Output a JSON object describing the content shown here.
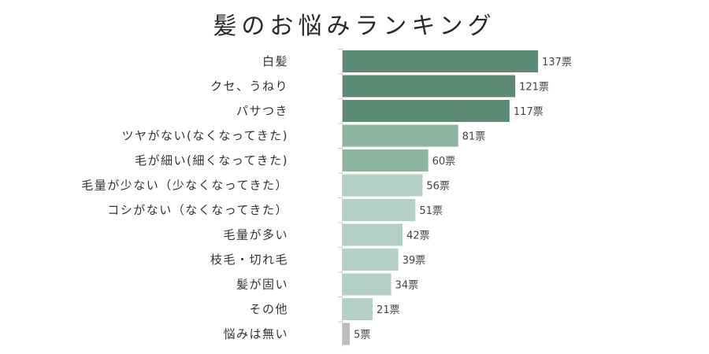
{
  "chart_data": {
    "type": "bar",
    "orientation": "horizontal",
    "title": "髪のお悩みランキング",
    "unit_suffix": "票",
    "categories": [
      "白髪",
      "クセ、うねり",
      "パサつき",
      "ツヤがない(なくなってきた)",
      "毛が細い(細くなってきた)",
      "毛量が少ない（少なくなってきた）",
      "コシがない（なくなってきた）",
      "毛量が多い",
      "枝毛・切れ毛",
      "髪が固い",
      "その他",
      "悩みは無い"
    ],
    "values": [
      137,
      121,
      117,
      81,
      60,
      56,
      51,
      42,
      39,
      34,
      21,
      5
    ],
    "value_labels": [
      "137票",
      "121票",
      "117票",
      "81票",
      "60票",
      "56票",
      "51票",
      "42票",
      "39票",
      "34票",
      "21票",
      "5票"
    ],
    "xlim": [
      0,
      137
    ],
    "grid": false,
    "legend": "none",
    "colors": {
      "top": "#5b8b76",
      "middle": "#8db5a2",
      "lower": "#b4cfc3",
      "none": "#bdbdbd"
    },
    "color_groups": [
      "top",
      "top",
      "top",
      "middle",
      "middle",
      "lower",
      "lower",
      "lower",
      "lower",
      "lower",
      "lower",
      "none"
    ]
  }
}
